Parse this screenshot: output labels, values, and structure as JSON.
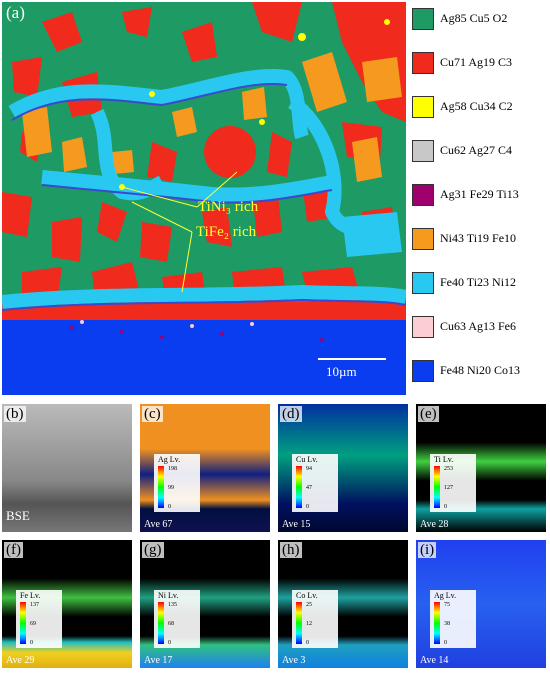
{
  "main": {
    "label": "(a)",
    "annotations": {
      "tini3": "TiNi₃ rich",
      "tife2": "TiFe₂ rich"
    },
    "scalebar": "10µm"
  },
  "legend": [
    {
      "label": "Ag85 Cu5 O2",
      "color": "#1e9a64"
    },
    {
      "label": "Cu71 Ag19 C3",
      "color": "#f02a1c"
    },
    {
      "label": "Ag58 Cu34 C2",
      "color": "#ffff00"
    },
    {
      "label": "Cu62 Ag27 C4",
      "color": "#c8c8c8"
    },
    {
      "label": "Ag31 Fe29 Ti13",
      "color": "#a0006e"
    },
    {
      "label": "Ni43 Ti19 Fe10",
      "color": "#f59a1e"
    },
    {
      "label": "Fe40 Ti23 Ni12",
      "color": "#28c8f0"
    },
    {
      "label": "Cu63 Ag13 Fe6",
      "color": "#fccdd2"
    },
    {
      "label": "Fe48 Ni20 Co13",
      "color": "#0a3cf0"
    }
  ],
  "maps": [
    {
      "label": "(b)",
      "tag": "BSE"
    },
    {
      "label": "(c)",
      "element": "Ag Lv.",
      "scale": [
        "198",
        "99",
        "0"
      ],
      "ave": "Ave 67"
    },
    {
      "label": "(d)",
      "element": "Cu Lv.",
      "scale": [
        "94",
        "47",
        "0"
      ],
      "ave": "Ave 15"
    },
    {
      "label": "(e)",
      "element": "Ti Lv.",
      "scale": [
        "253",
        "127",
        "0"
      ],
      "ave": "Ave 28"
    },
    {
      "label": "(f)",
      "element": "Fe Lv.",
      "scale": [
        "137",
        "69",
        "0"
      ],
      "ave": "Ave 29"
    },
    {
      "label": "(g)",
      "element": "Ni Lv.",
      "scale": [
        "135",
        "68",
        "0"
      ],
      "ave": "Ave 17"
    },
    {
      "label": "(h)",
      "element": "Co Lv.",
      "scale": [
        "25",
        "12",
        "0"
      ],
      "ave": "Ave 3"
    },
    {
      "label": "(i)",
      "element": "Ag Lv.",
      "scale": [
        "75",
        "38",
        "0"
      ],
      "ave": "Ave 14"
    }
  ]
}
